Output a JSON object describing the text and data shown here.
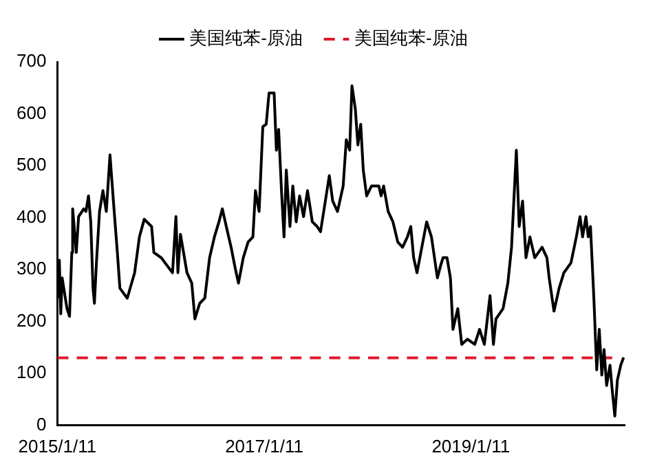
{
  "chart_data": {
    "type": "line",
    "legend": "top",
    "grid": false,
    "marker": "none",
    "line_style": "solid",
    "xlim": [
      "2015-01-11",
      "2020-07-08"
    ],
    "xticks": [
      {
        "value": "2015-01-11",
        "label": "2015/1/11"
      },
      {
        "value": "2017-01-11",
        "label": "2017/1/11"
      },
      {
        "value": "2019-01-11",
        "label": "2019/1/11"
      }
    ],
    "ylim": [
      0,
      700
    ],
    "yticks": [
      0,
      100,
      200,
      300,
      400,
      500,
      600,
      700
    ],
    "series": [
      {
        "name": "美国纯苯-原油",
        "color": "#000000",
        "x": [
          "2015-01-13",
          "2015-01-18",
          "2015-01-23",
          "2015-01-28",
          "2015-02-14",
          "2015-02-23",
          "2015-03-03",
          "2015-03-06",
          "2015-03-19",
          "2015-03-27",
          "2015-04-14",
          "2015-04-22",
          "2015-05-01",
          "2015-05-09",
          "2015-05-17",
          "2015-05-22",
          "2015-05-29",
          "2015-06-09",
          "2015-06-21",
          "2015-07-03",
          "2015-07-16",
          "2015-07-28",
          "2015-08-11",
          "2015-08-20",
          "2015-09-15",
          "2015-10-11",
          "2015-10-28",
          "2015-11-14",
          "2015-12-10",
          "2015-12-18",
          "2016-01-13",
          "2016-02-08",
          "2016-02-22",
          "2016-03-05",
          "2016-03-12",
          "2016-03-21",
          "2016-04-13",
          "2016-04-30",
          "2016-05-11",
          "2016-05-28",
          "2016-06-15",
          "2016-07-02",
          "2016-07-19",
          "2016-08-04",
          "2016-08-16",
          "2016-08-30",
          "2016-09-16",
          "2016-09-30",
          "2016-10-12",
          "2016-10-29",
          "2016-11-15",
          "2016-12-02",
          "2016-12-11",
          "2016-12-24",
          "2017-01-06",
          "2017-01-18",
          "2017-01-28",
          "2017-02-15",
          "2017-02-23",
          "2017-03-03",
          "2017-03-13",
          "2017-03-22",
          "2017-03-30",
          "2017-04-12",
          "2017-04-22",
          "2017-05-04",
          "2017-05-16",
          "2017-05-30",
          "2017-06-13",
          "2017-06-30",
          "2017-07-17",
          "2017-07-29",
          "2017-08-15",
          "2017-08-29",
          "2017-09-10",
          "2017-09-27",
          "2017-10-17",
          "2017-10-28",
          "2017-11-09",
          "2017-11-17",
          "2017-11-29",
          "2017-12-08",
          "2017-12-18",
          "2017-12-27",
          "2018-01-08",
          "2018-01-25",
          "2018-02-20",
          "2018-02-28",
          "2018-03-09",
          "2018-03-25",
          "2018-04-11",
          "2018-04-28",
          "2018-05-15",
          "2018-06-01",
          "2018-06-13",
          "2018-06-23",
          "2018-07-05",
          "2018-07-22",
          "2018-08-08",
          "2018-08-25",
          "2018-09-15",
          "2018-09-27",
          "2018-10-05",
          "2018-10-19",
          "2018-10-31",
          "2018-11-09",
          "2018-11-26",
          "2018-12-10",
          "2018-12-30",
          "2019-01-25",
          "2019-02-11",
          "2019-02-28",
          "2019-03-20",
          "2019-04-01",
          "2019-04-10",
          "2019-05-05",
          "2019-05-22",
          "2019-06-04",
          "2019-06-21",
          "2019-07-01",
          "2019-07-13",
          "2019-07-25",
          "2019-08-08",
          "2019-08-25",
          "2019-09-20",
          "2019-10-07",
          "2019-10-15",
          "2019-11-01",
          "2019-11-19",
          "2019-12-06",
          "2019-12-31",
          "2020-01-19",
          "2020-02-01",
          "2020-02-10",
          "2020-02-22",
          "2020-03-01",
          "2020-03-09",
          "2020-03-21",
          "2020-03-31",
          "2020-04-09",
          "2020-04-18",
          "2020-04-26",
          "2020-05-05",
          "2020-05-17",
          "2020-05-25",
          "2020-06-03",
          "2020-06-12",
          "2020-06-24",
          "2020-07-04"
        ],
        "values": [
          245,
          318,
          215,
          284,
          225,
          210,
          333,
          417,
          333,
          402,
          417,
          412,
          442,
          392,
          264,
          235,
          313,
          412,
          452,
          412,
          521,
          432,
          333,
          264,
          245,
          294,
          363,
          397,
          383,
          333,
          323,
          304,
          294,
          402,
          294,
          368,
          294,
          274,
          205,
          235,
          245,
          323,
          363,
          392,
          417,
          383,
          343,
          304,
          274,
          323,
          353,
          363,
          452,
          412,
          575,
          580,
          640,
          640,
          530,
          570,
          452,
          363,
          492,
          383,
          461,
          392,
          442,
          402,
          452,
          392,
          383,
          373,
          432,
          481,
          432,
          412,
          461,
          550,
          530,
          654,
          609,
          540,
          580,
          492,
          442,
          461,
          461,
          442,
          461,
          412,
          392,
          353,
          343,
          363,
          383,
          323,
          294,
          343,
          392,
          363,
          284,
          309,
          323,
          323,
          284,
          185,
          225,
          156,
          166,
          156,
          185,
          156,
          250,
          156,
          205,
          225,
          274,
          343,
          530,
          383,
          432,
          323,
          363,
          323,
          343,
          323,
          284,
          220,
          264,
          294,
          313,
          363,
          402,
          363,
          402,
          363,
          383,
          244,
          107,
          185,
          97,
          146,
          77,
          116,
          67,
          18,
          87,
          116,
          131
        ]
      },
      {
        "name": "美国纯苯-原油",
        "type": "line",
        "line_style": "dashed",
        "color": "#e0182d",
        "x": [
          "2015-01-11",
          "2020-05-25"
        ],
        "values": [
          130,
          130
        ]
      }
    ]
  }
}
